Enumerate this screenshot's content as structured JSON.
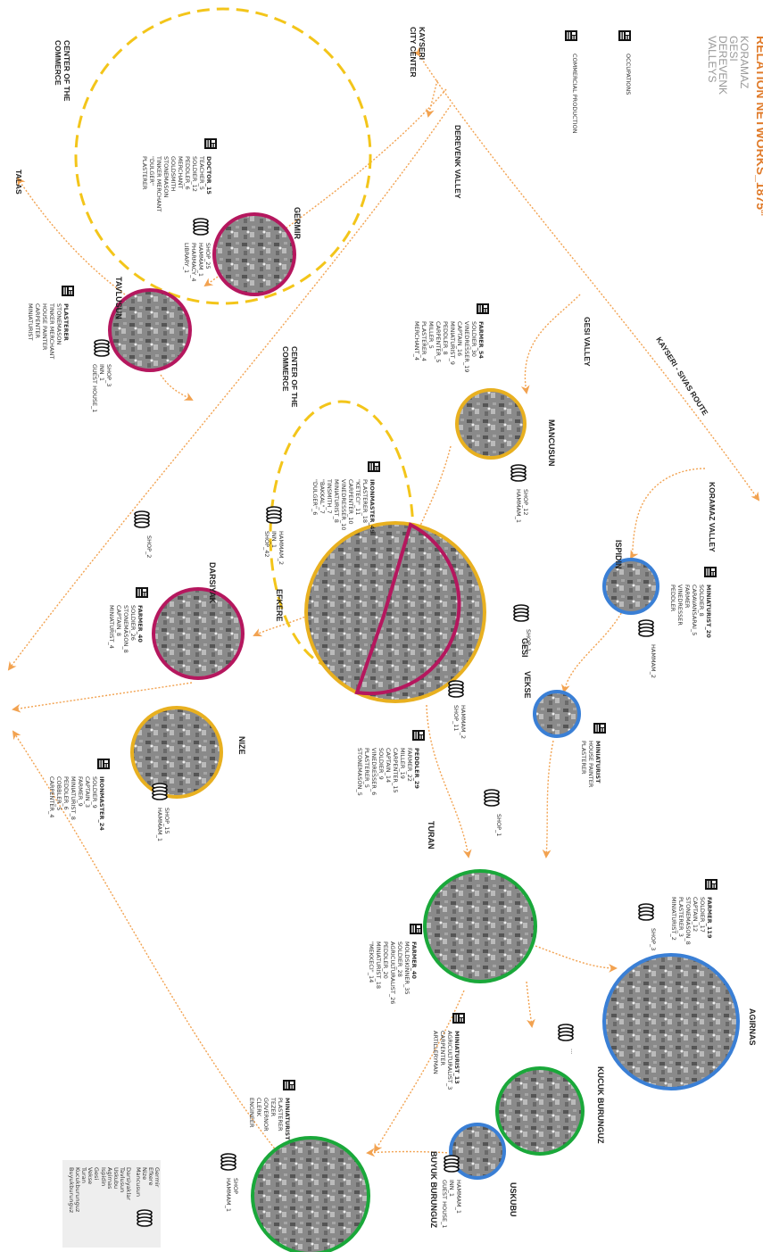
{
  "title": "RELATION NETWORKS_1875",
  "title_sup": "th",
  "subtitle": [
    "KORAMAZ",
    "GESI",
    "DEREVENK",
    "VALLEYS"
  ],
  "legend": {
    "occupations": "OCCUPATIONS",
    "commercial": "COMMERCIAL PRODUCTION"
  },
  "labels": {
    "kayseri": [
      "KAYSERI",
      "CITY CENTER"
    ],
    "derevenk_valley": "DEREVENK VALLEY",
    "gesi_valley": "GESI VALLEY",
    "koramaz_valley": "KORAMAZ VALLEY",
    "route": "KAYSERI - SIVAS ROUTE",
    "talas": "TALAS",
    "commerce_1": [
      "CENTER OF THE",
      "COMMERCE"
    ],
    "commerce_2": [
      "CENTER OF THE",
      "COMMERCE"
    ]
  },
  "villages": [
    {
      "name": "GERMIR",
      "occupations": [
        "DOCTOR_15",
        "TEACHER_5",
        "SOLDIER_12",
        "PEDDLER_6",
        "MERCHANT",
        "GOLDSMITH",
        "STONEMASON",
        "TINKER MERCHANT",
        "\"DULGER\"",
        "PLASTERER"
      ],
      "commerce": [
        "SHOP_25",
        "HAMMAM_1",
        "PHARMACY_4",
        "LIBRARY_1"
      ]
    },
    {
      "name": "TAVLUSUN",
      "occupations": [
        "PLASTERER",
        "STONEMASON",
        "TINKER MERCHANT",
        "HOUSE PAINTER",
        "CARPENTER",
        "MINIATURIST"
      ],
      "commerce": [
        "SHOP_3",
        "INN_1",
        "GUEST HOUSE_1"
      ]
    },
    {
      "name": "MANCUSUN",
      "occupations": [
        "FARMER_54",
        "SOLDIER_30",
        "VINEDRESSER_19",
        "CAPTAIN_16",
        "MINIATURIST_9",
        "PEDDLER_8",
        "CARPENTER_5",
        "MILLER_5",
        "PLASTERER_4",
        "MERCHANT_4"
      ],
      "commerce": [
        "SHOP_12",
        "HAMMAM_1"
      ]
    },
    {
      "name": "EFKERE",
      "occupations": [
        "IRONMASTER_49",
        "PLASTERER_18",
        "\"KETECI\"_11",
        "CARPENTER_10",
        "VINEDRESSER_10",
        "MINIATURIST_8",
        "TINSMITH_7",
        "\"BAKKAL\"_7",
        "\"DULGER\"_6"
      ],
      "commerce": [
        "HAMMAM_2",
        "INN_1",
        "SHOP_42"
      ]
    },
    {
      "name": "DARSIYAK",
      "occupations": [
        "FARMER_40",
        "SOLDIER_26",
        "STONEMASON_8",
        "CAPTAIN_8",
        "MINIATURIST_4"
      ],
      "commerce": [
        "SHOP_2"
      ]
    },
    {
      "name": "NIZE",
      "occupations": [
        "IRONMASTER_24",
        "SOLDIER_9",
        "CAPTAIN_3",
        "FARMER_9",
        "MINIATURIST_8",
        "PEDDLER_6",
        "COBBLER_5",
        "CARPENTER_4"
      ],
      "commerce": [
        "SHOP_15",
        "HAMMAM_1"
      ]
    },
    {
      "name": "GESI",
      "occupations": [
        "PEDDLER_29",
        "FARMER_22",
        "MILLER_19",
        "CARPENTER_15",
        "CAPTAIN_14",
        "SOLDIER_9",
        "VINEDRESSER_6",
        "PLASTERER_5",
        "STONEMASON_5"
      ],
      "commerce": [
        "HAMMAM_2",
        "SHOP_11"
      ]
    },
    {
      "name": "ISPIDIN",
      "occupations": [
        "MINIATURIST_20",
        "SOLDIER_8",
        "CARAVANSARAI_5",
        "FARMER",
        "VINEDRESSER",
        "PEDDLER"
      ],
      "commerce": [
        "HAMMAM_2"
      ]
    },
    {
      "name": "VEKSE",
      "occupations": [
        "MINIATURIST",
        "HOUSE PAINTER",
        "PLASTERER"
      ],
      "commerce": [
        "SHOP_1"
      ]
    },
    {
      "name": "TURAN",
      "occupations": [
        "FARMER_40",
        "MOLDSKINNER_35",
        "SOLDIER_28",
        "AGRICULTURALIST_26",
        "PEDDLER_20",
        "MINIATURIST_18",
        "\"MEKKECI\"_14"
      ],
      "commerce": [
        "SHOP_1"
      ]
    },
    {
      "name": "AGIRNAS",
      "occupations": [
        "FARMER_119",
        "SOLDIER_17",
        "CAPTAIN_12",
        "STONEMASON_8",
        "PLASTERER_3",
        "MINIATURIST_2"
      ],
      "commerce": [
        "SHOP_3"
      ]
    },
    {
      "name": "KUCUK BURUNGUZ",
      "occupations": [
        "MINIATURIST_13",
        "AGRICULTURALIST_3",
        "CARPENTER",
        "ARTILLERYMAN"
      ],
      "commerce": [
        "..."
      ]
    },
    {
      "name": "USKUBU",
      "occupations": [],
      "commerce": [
        "HAMMAM_1",
        "INN_1",
        "GUEST HOUSE_1"
      ]
    },
    {
      "name": "BUYUK BURUNGUZ",
      "occupations": [
        "MINIATURIST",
        "PLASTERER",
        "TEZER",
        "GOVERNOR",
        "CLERK",
        "ENGINEER"
      ],
      "commerce": [
        "SHOP",
        "HAMMAM_1"
      ]
    }
  ],
  "key": [
    [
      "Germir",
      "Efkere",
      "Nize",
      "Mancusun"
    ],
    [
      "Darsiyaklar",
      "Tavlusun",
      "Uskubu",
      "Agirnas",
      "Ispidin"
    ],
    [
      "Gesi",
      "Vekse",
      "Turan",
      "Kucukburunguz",
      "Buyukburunguz"
    ]
  ]
}
